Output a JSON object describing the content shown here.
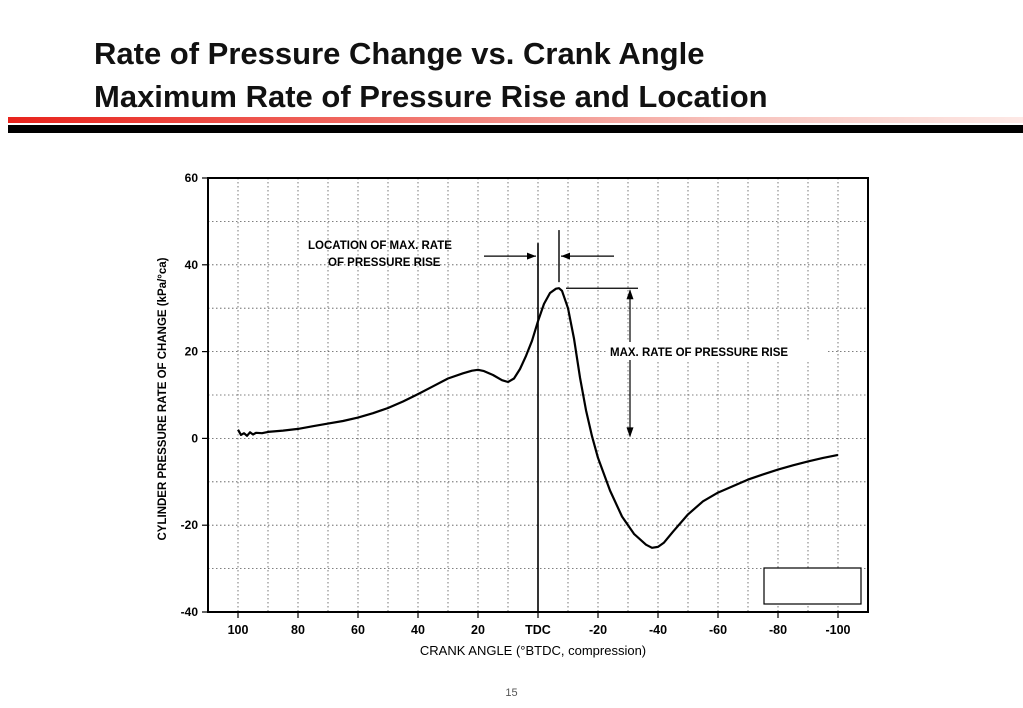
{
  "header": {
    "title_line1": "Rate of Pressure Change vs. Crank Angle",
    "title_line2": "Maximum Rate of Pressure Rise and Location"
  },
  "footer": {
    "page_number": "15"
  },
  "chart_data": {
    "type": "line",
    "title": "",
    "xlabel": "CRANK ANGLE (°BTDC, compression)",
    "ylabel": "CYLINDER PRESSURE RATE OF CHANGE (kPa/°ca)",
    "xlim": [
      100,
      -100
    ],
    "ylim": [
      -40,
      60
    ],
    "x_reversed": true,
    "grid": true,
    "x_ticks": [
      {
        "value": 100,
        "label": "100"
      },
      {
        "value": 80,
        "label": "80"
      },
      {
        "value": 60,
        "label": "60"
      },
      {
        "value": 40,
        "label": "40"
      },
      {
        "value": 20,
        "label": "20"
      },
      {
        "value": 0,
        "label": "TDC"
      },
      {
        "value": -20,
        "label": "-20"
      },
      {
        "value": -40,
        "label": "-40"
      },
      {
        "value": -60,
        "label": "-60"
      },
      {
        "value": -80,
        "label": "-80"
      },
      {
        "value": -100,
        "label": "-100"
      }
    ],
    "y_ticks": [
      {
        "value": 60,
        "label": "60"
      },
      {
        "value": 40,
        "label": "40"
      },
      {
        "value": 20,
        "label": "20"
      },
      {
        "value": 0,
        "label": "0"
      },
      {
        "value": -20,
        "label": "-20"
      },
      {
        "value": -40,
        "label": "-40"
      }
    ],
    "series": [
      {
        "x": [
          100,
          99,
          98,
          97,
          96,
          95,
          94,
          92,
          90,
          85,
          80,
          75,
          70,
          65,
          60,
          55,
          50,
          45,
          40,
          35,
          30,
          25,
          22,
          20,
          18,
          15,
          12,
          10,
          8,
          6,
          4,
          2,
          0,
          -2,
          -4,
          -6,
          -7,
          -8,
          -10,
          -12,
          -14,
          -16,
          -18,
          -20,
          -24,
          -28,
          -32,
          -36,
          -38,
          -40,
          -42,
          -45,
          -50,
          -55,
          -60,
          -65,
          -70,
          -75,
          -80,
          -85,
          -90,
          -95,
          -100
        ],
        "y": [
          2,
          0.8,
          1.2,
          0.6,
          1.4,
          0.9,
          1.3,
          1.2,
          1.5,
          1.8,
          2.2,
          2.8,
          3.4,
          4.0,
          4.8,
          5.8,
          7.0,
          8.5,
          10.2,
          12.0,
          13.8,
          15.0,
          15.6,
          15.8,
          15.5,
          14.6,
          13.4,
          13.0,
          13.8,
          16.0,
          19.0,
          22.5,
          27.0,
          31.0,
          33.5,
          34.5,
          34.6,
          34.0,
          30.0,
          23.0,
          14.0,
          6.5,
          0.5,
          -4.5,
          -12.0,
          -18.0,
          -22.0,
          -24.5,
          -25.2,
          -25.0,
          -24.0,
          -21.5,
          -17.5,
          -14.5,
          -12.5,
          -11.0,
          -9.5,
          -8.3,
          -7.2,
          -6.2,
          -5.3,
          -4.5,
          -3.8
        ]
      }
    ],
    "markers": {
      "vline_tdc_x": 0,
      "peak_x": -7,
      "peak_y": 34.6
    },
    "annotations": [
      {
        "id": "location",
        "lines": [
          "LOCATION OF MAX. RATE",
          "OF PRESSURE RISE"
        ]
      },
      {
        "id": "max-rate",
        "text": "MAX. RATE OF PRESSURE RISE"
      }
    ]
  }
}
